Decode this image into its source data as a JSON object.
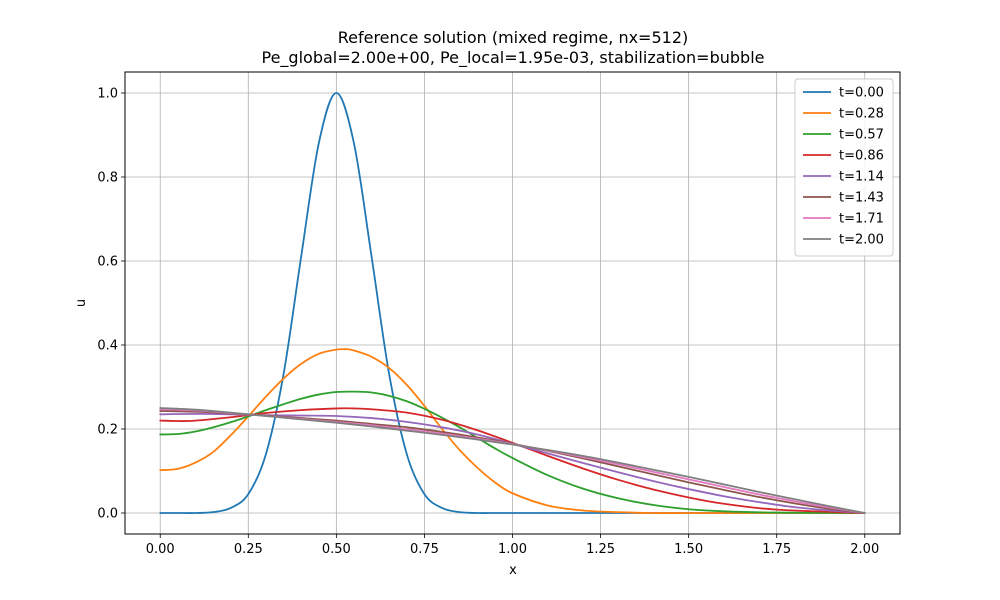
{
  "chart_data": {
    "type": "line",
    "title": "Reference solution (mixed regime, nx=512)",
    "subtitle": "Pe_global=2.00e+00, Pe_local=1.95e-03, stabilization=bubble",
    "xlabel": "x",
    "ylabel": "u",
    "xlim": [
      -0.1,
      2.1
    ],
    "ylim": [
      -0.05,
      1.05
    ],
    "xticks": [
      0.0,
      0.25,
      0.5,
      0.75,
      1.0,
      1.25,
      1.5,
      1.75,
      2.0
    ],
    "xtick_labels": [
      "0.00",
      "0.25",
      "0.50",
      "0.75",
      "1.00",
      "1.25",
      "1.50",
      "1.75",
      "2.00"
    ],
    "yticks": [
      0.0,
      0.2,
      0.4,
      0.6,
      0.8,
      1.0
    ],
    "ytick_labels": [
      "0.0",
      "0.2",
      "0.4",
      "0.6",
      "0.8",
      "1.0"
    ],
    "grid": true,
    "legend_position": "top-right",
    "series": [
      {
        "name": "t=0.00",
        "color": "#1f77b4",
        "x": [
          0.0,
          0.05,
          0.1,
          0.15,
          0.2,
          0.25,
          0.3,
          0.35,
          0.4,
          0.45,
          0.5,
          0.55,
          0.6,
          0.65,
          0.7,
          0.75,
          0.8,
          0.85,
          0.9,
          0.95,
          1.0,
          1.25,
          1.5,
          1.75,
          2.0
        ],
        "y": [
          0.0,
          0.0,
          0.0,
          0.002,
          0.012,
          0.045,
          0.14,
          0.33,
          0.61,
          0.88,
          1.0,
          0.88,
          0.61,
          0.33,
          0.14,
          0.045,
          0.012,
          0.002,
          0.0,
          0.0,
          0.0,
          0.0,
          0.0,
          0.0,
          0.0
        ]
      },
      {
        "name": "t=0.28",
        "color": "#ff7f0e",
        "x": [
          0.0,
          0.05,
          0.1,
          0.15,
          0.2,
          0.25,
          0.3,
          0.35,
          0.4,
          0.45,
          0.5,
          0.53,
          0.55,
          0.6,
          0.65,
          0.7,
          0.75,
          0.8,
          0.85,
          0.9,
          0.95,
          1.0,
          1.1,
          1.2,
          1.3,
          1.4,
          1.5,
          1.75,
          2.0
        ],
        "y": [
          0.102,
          0.105,
          0.12,
          0.145,
          0.185,
          0.23,
          0.277,
          0.32,
          0.355,
          0.379,
          0.389,
          0.39,
          0.387,
          0.372,
          0.345,
          0.305,
          0.255,
          0.2,
          0.15,
          0.108,
          0.073,
          0.047,
          0.018,
          0.006,
          0.002,
          0.0,
          0.0,
          0.0,
          0.0
        ]
      },
      {
        "name": "t=0.57",
        "color": "#2ca02c",
        "x": [
          0.0,
          0.05,
          0.1,
          0.15,
          0.2,
          0.25,
          0.3,
          0.35,
          0.4,
          0.45,
          0.5,
          0.55,
          0.6,
          0.65,
          0.7,
          0.75,
          0.8,
          0.85,
          0.9,
          0.95,
          1.0,
          1.1,
          1.2,
          1.3,
          1.4,
          1.5,
          1.6,
          1.75,
          2.0
        ],
        "y": [
          0.187,
          0.188,
          0.194,
          0.204,
          0.216,
          0.23,
          0.245,
          0.259,
          0.272,
          0.282,
          0.288,
          0.289,
          0.287,
          0.279,
          0.266,
          0.248,
          0.227,
          0.204,
          0.179,
          0.154,
          0.131,
          0.09,
          0.058,
          0.035,
          0.019,
          0.009,
          0.004,
          0.001,
          0.0
        ]
      },
      {
        "name": "t=0.86",
        "color": "#d62728",
        "x": [
          0.0,
          0.05,
          0.1,
          0.2,
          0.3,
          0.4,
          0.5,
          0.55,
          0.6,
          0.7,
          0.8,
          0.9,
          1.0,
          1.1,
          1.2,
          1.3,
          1.4,
          1.5,
          1.6,
          1.75,
          2.0
        ],
        "y": [
          0.22,
          0.219,
          0.22,
          0.228,
          0.238,
          0.245,
          0.249,
          0.249,
          0.247,
          0.239,
          0.222,
          0.197,
          0.167,
          0.136,
          0.106,
          0.079,
          0.056,
          0.037,
          0.022,
          0.008,
          0.0
        ]
      },
      {
        "name": "t=1.14",
        "color": "#9467bd",
        "x": [
          0.0,
          0.1,
          0.2,
          0.3,
          0.4,
          0.5,
          0.6,
          0.7,
          0.8,
          0.9,
          1.0,
          1.1,
          1.2,
          1.3,
          1.4,
          1.5,
          1.6,
          1.7,
          1.8,
          1.9,
          2.0
        ],
        "y": [
          0.235,
          0.236,
          0.235,
          0.233,
          0.232,
          0.231,
          0.226,
          0.217,
          0.204,
          0.187,
          0.165,
          0.142,
          0.119,
          0.097,
          0.076,
          0.057,
          0.04,
          0.026,
          0.014,
          0.006,
          0.0
        ]
      },
      {
        "name": "t=1.43",
        "color": "#8c564b",
        "x": [
          0.0,
          0.1,
          0.2,
          0.3,
          0.4,
          0.5,
          0.6,
          0.7,
          0.8,
          0.9,
          1.0,
          1.1,
          1.2,
          1.3,
          1.4,
          1.5,
          1.6,
          1.7,
          1.8,
          1.9,
          2.0
        ],
        "y": [
          0.243,
          0.241,
          0.237,
          0.232,
          0.226,
          0.22,
          0.212,
          0.204,
          0.193,
          0.18,
          0.165,
          0.148,
          0.13,
          0.111,
          0.092,
          0.073,
          0.055,
          0.038,
          0.023,
          0.01,
          0.0
        ]
      },
      {
        "name": "t=1.71",
        "color": "#e377c2",
        "x": [
          0.0,
          0.1,
          0.2,
          0.3,
          0.4,
          0.5,
          0.6,
          0.7,
          0.8,
          0.9,
          1.0,
          1.1,
          1.2,
          1.3,
          1.4,
          1.5,
          1.6,
          1.7,
          1.8,
          1.9,
          2.0
        ],
        "y": [
          0.247,
          0.244,
          0.238,
          0.231,
          0.224,
          0.217,
          0.209,
          0.199,
          0.189,
          0.177,
          0.164,
          0.149,
          0.133,
          0.116,
          0.098,
          0.08,
          0.062,
          0.044,
          0.028,
          0.013,
          0.0
        ]
      },
      {
        "name": "t=2.00",
        "color": "#7f7f7f",
        "x": [
          0.0,
          0.1,
          0.2,
          0.3,
          0.4,
          0.5,
          0.6,
          0.7,
          0.8,
          0.9,
          1.0,
          1.1,
          1.2,
          1.3,
          1.4,
          1.5,
          1.6,
          1.7,
          1.8,
          1.9,
          2.0
        ],
        "y": [
          0.25,
          0.246,
          0.239,
          0.231,
          0.223,
          0.215,
          0.206,
          0.196,
          0.186,
          0.175,
          0.163,
          0.15,
          0.136,
          0.12,
          0.103,
          0.086,
          0.068,
          0.05,
          0.033,
          0.016,
          0.0
        ]
      }
    ]
  }
}
